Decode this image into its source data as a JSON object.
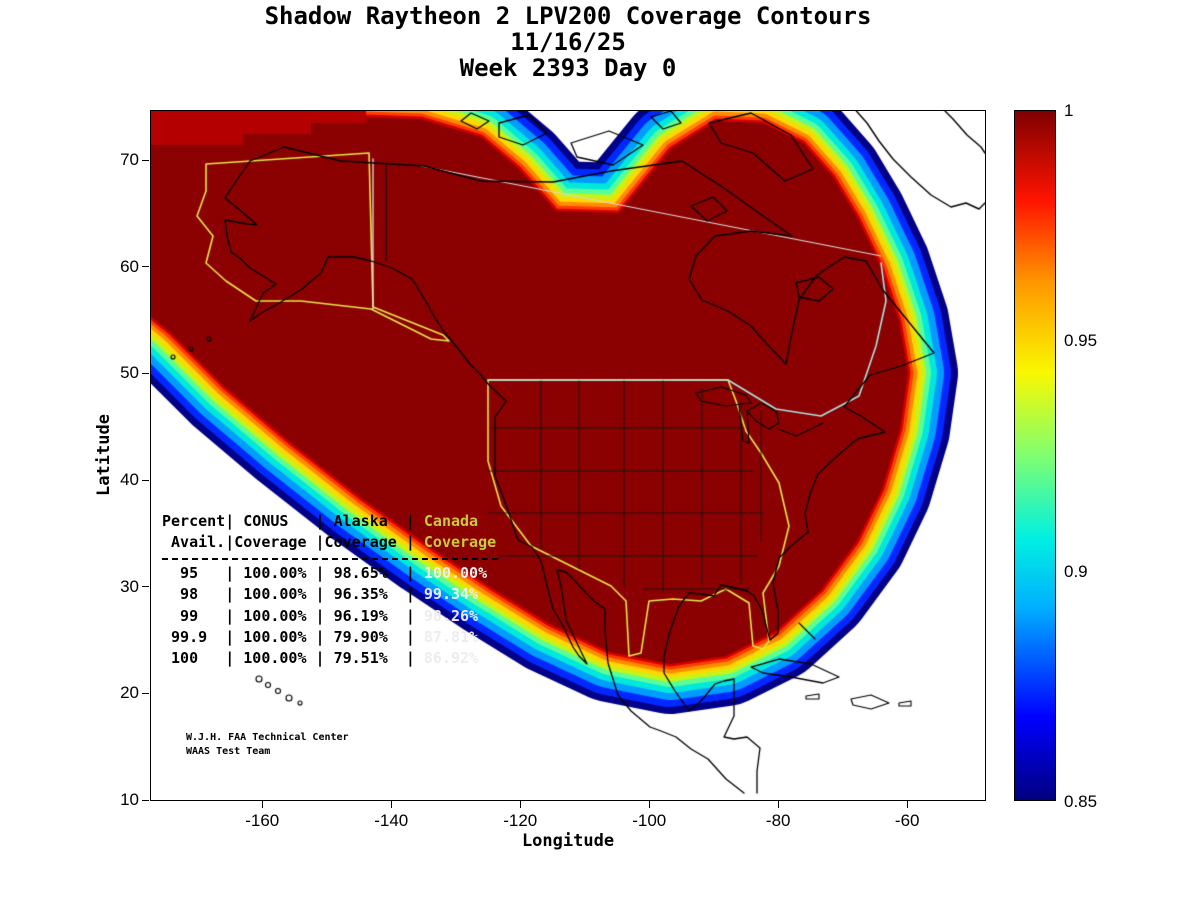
{
  "title": {
    "line1": "Shadow Raytheon 2 LPV200 Coverage Contours",
    "line2": "11/16/25",
    "line3": "Week 2393 Day 0"
  },
  "axes": {
    "x_label": "Longitude",
    "y_label": "Latitude",
    "x_ticks": [
      -160,
      -140,
      -120,
      -100,
      -80,
      -60
    ],
    "y_ticks": [
      70,
      60,
      50,
      40,
      30,
      20,
      10
    ]
  },
  "colorbar": {
    "tick_labels": [
      "1",
      "0.95",
      "0.9",
      "0.85"
    ],
    "tick_values": [
      1,
      0.95,
      0.9,
      0.85
    ]
  },
  "coverage_table": {
    "lines": [
      {
        "left": "Percent| CONUS   | Alaska  | ",
        "right": "Canada",
        "kind": "header"
      },
      {
        "left": " Avail.|Coverage |Coverage | ",
        "right": "Coverage",
        "kind": "header"
      },
      {
        "left": "  95   | 100.00% | 98.65%  | ",
        "right": "100.00%",
        "kind": "row"
      },
      {
        "left": "  98   | 100.00% | 96.35%  | ",
        "right": "99.34%",
        "kind": "row"
      },
      {
        "left": "  99   | 100.00% | 96.19%  | ",
        "right": "98.26%",
        "kind": "row"
      },
      {
        "left": " 99.9  | 100.00% | 79.90%  | ",
        "right": "87.81%",
        "kind": "row"
      },
      {
        "left": " 100   | 100.00% | 79.51%  | ",
        "right": "86.92%",
        "kind": "row"
      }
    ]
  },
  "credit": {
    "line1": "W.J.H. FAA Technical Center",
    "line2": "WAAS Test Team"
  },
  "chart_data": {
    "type": "heatmap",
    "subtype": "filled-contour-coverage-map",
    "title": "Shadow Raytheon 2 LPV200 Coverage Contours",
    "date": "11/16/25",
    "week_day": "Week 2393 Day 0",
    "xlabel": "Longitude",
    "ylabel": "Latitude",
    "xlim": [
      -177,
      -48
    ],
    "ylim": [
      10,
      75
    ],
    "x_ticks": [
      -160,
      -140,
      -120,
      -100,
      -80,
      -60
    ],
    "y_ticks": [
      70,
      60,
      50,
      40,
      30,
      20,
      10
    ],
    "grid": false,
    "colorbar": {
      "min": 0.85,
      "max": 1,
      "ticks": [
        1,
        0.95,
        0.9,
        0.85
      ],
      "colormap": "jet",
      "position": "right"
    },
    "categories_label": "Percent Avail.",
    "categories": [
      95,
      98,
      99,
      99.9,
      100
    ],
    "series": [
      {
        "name": "CONUS Coverage",
        "values": [
          100.0,
          100.0,
          100.0,
          100.0,
          100.0
        ]
      },
      {
        "name": "Alaska Coverage",
        "values": [
          98.65,
          96.35,
          96.19,
          79.9,
          79.51
        ]
      },
      {
        "name": "Canada Coverage",
        "values": [
          100.0,
          99.34,
          98.26,
          87.81,
          86.92
        ]
      }
    ]
  }
}
